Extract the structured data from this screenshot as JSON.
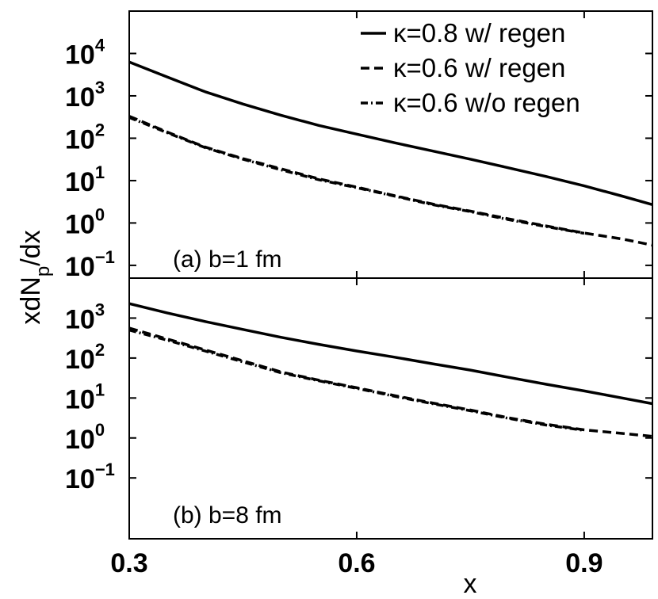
{
  "chart_data": {
    "type": "line",
    "x_axis": {
      "label": "x",
      "ticks": [
        "0.3",
        "0.6",
        "0.9"
      ],
      "tick_values": [
        0.3,
        0.6,
        0.9
      ],
      "xlim": [
        0.3,
        0.99
      ]
    },
    "y_axis": {
      "label_main": "xdN",
      "label_sub": "p",
      "label_tail": "/dx",
      "scale": "log"
    },
    "legend": {
      "placement": "top-right",
      "entries": [
        {
          "series_index": 0,
          "label": "κ=0.8 w/ regen",
          "style": "solid"
        },
        {
          "series_index": 1,
          "label": "κ=0.6 w/ regen",
          "style": "dashed"
        },
        {
          "series_index": 2,
          "label": "κ=0.6 w/o regen",
          "style": "dashdot"
        }
      ]
    },
    "panels": [
      {
        "label": "(a) b=1 fm",
        "ylim": [
          0.05,
          100000
        ],
        "y_ticks": [
          {
            "base": "10",
            "exp": "4",
            "value": 10000
          },
          {
            "base": "10",
            "exp": "3",
            "value": 1000
          },
          {
            "base": "10",
            "exp": "2",
            "value": 100
          },
          {
            "base": "10",
            "exp": "1",
            "value": 10
          },
          {
            "base": "10",
            "exp": "0",
            "value": 1
          },
          {
            "base": "10",
            "exp": "−1",
            "value": 0.1
          }
        ],
        "series": [
          {
            "name": "κ=0.8 w/ regen",
            "style": "solid",
            "x": [
              0.3,
              0.35,
              0.4,
              0.45,
              0.5,
              0.55,
              0.6,
              0.65,
              0.7,
              0.75,
              0.8,
              0.85,
              0.9,
              0.95,
              0.99
            ],
            "y": [
              6300,
              2800,
              1250,
              640,
              350,
              200,
              125,
              78,
              50,
              32,
              20,
              12.5,
              7.5,
              4.3,
              2.7
            ]
          },
          {
            "name": "κ=0.6 w/ regen",
            "style": "dashed",
            "x": [
              0.3,
              0.35,
              0.4,
              0.45,
              0.5,
              0.55,
              0.6,
              0.65,
              0.7,
              0.75,
              0.8,
              0.85,
              0.9,
              0.95,
              0.99
            ],
            "y": [
              330,
              140,
              62,
              33,
              19,
              11,
              7,
              4.4,
              2.8,
              1.9,
              1.25,
              0.85,
              0.58,
              0.42,
              0.3
            ]
          },
          {
            "name": "κ=0.6 w/o regen",
            "style": "dashdot",
            "x": [
              0.3,
              0.35,
              0.4,
              0.45,
              0.5,
              0.55,
              0.6,
              0.65,
              0.7,
              0.75,
              0.8,
              0.85,
              0.9
            ],
            "y": [
              310,
              135,
              60,
              32,
              18,
              10.5,
              6.8,
              4.3,
              2.7,
              1.85,
              1.2,
              0.82,
              0.57
            ]
          }
        ]
      },
      {
        "label": "(b) b=8 fm",
        "ylim": [
          0.003,
          10000
        ],
        "y_ticks": [
          {
            "base": "10",
            "exp": "3",
            "value": 1000
          },
          {
            "base": "10",
            "exp": "2",
            "value": 100
          },
          {
            "base": "10",
            "exp": "1",
            "value": 10
          },
          {
            "base": "10",
            "exp": "0",
            "value": 1
          },
          {
            "base": "10",
            "exp": "−1",
            "value": 0.1
          }
        ],
        "series": [
          {
            "name": "κ=0.8 w/ regen",
            "style": "solid",
            "x": [
              0.3,
              0.35,
              0.4,
              0.45,
              0.5,
              0.55,
              0.6,
              0.65,
              0.7,
              0.75,
              0.8,
              0.85,
              0.9,
              0.95,
              0.99
            ],
            "y": [
              2300,
              1350,
              820,
              520,
              330,
              220,
              150,
              105,
              72,
              50,
              33,
              22,
              15,
              10,
              7.2
            ]
          },
          {
            "name": "κ=0.6 w/ regen",
            "style": "dashed",
            "x": [
              0.3,
              0.35,
              0.4,
              0.45,
              0.5,
              0.55,
              0.6,
              0.65,
              0.7,
              0.75,
              0.8,
              0.85,
              0.9,
              0.95,
              0.99
            ],
            "y": [
              560,
              300,
              160,
              85,
              45,
              28,
              18,
              11.5,
              7.5,
              5.0,
              3.2,
              2.2,
              1.6,
              1.3,
              1.1
            ]
          },
          {
            "name": "κ=0.6 w/o regen",
            "style": "dashdot",
            "x": [
              0.3,
              0.35,
              0.4,
              0.45,
              0.5,
              0.55,
              0.6,
              0.65,
              0.7,
              0.75,
              0.8,
              0.85,
              0.9
            ],
            "y": [
              500,
              280,
              150,
              80,
              43,
              27,
              17.5,
              11,
              7.2,
              4.8,
              3.1,
              2.1,
              1.55
            ]
          }
        ]
      }
    ]
  }
}
